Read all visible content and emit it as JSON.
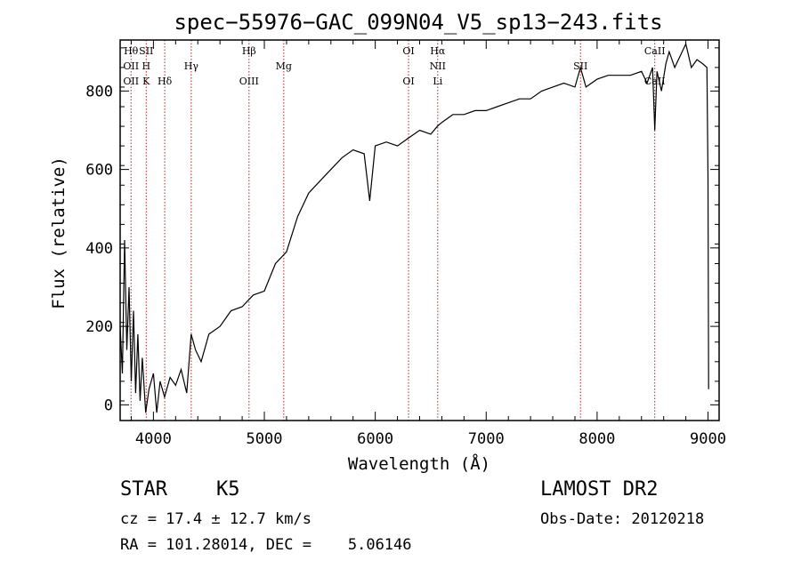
{
  "chart_data": {
    "type": "line",
    "title": "spec−55976−GAC_099N04_V5_sp13−243.fits",
    "xlabel": "Wavelength (Å)",
    "ylabel": "Flux (relative)",
    "xlim": [
      3700,
      9100
    ],
    "ylim": [
      -40,
      930
    ],
    "x_ticks": [
      4000,
      5000,
      6000,
      7000,
      8000,
      9000
    ],
    "y_ticks": [
      0,
      200,
      400,
      600,
      800
    ],
    "series": [
      {
        "color": "#000000",
        "x": [
          3700,
          3720,
          3740,
          3760,
          3780,
          3800,
          3820,
          3840,
          3860,
          3880,
          3900,
          3930,
          3960,
          4000,
          4030,
          4060,
          4100,
          4150,
          4200,
          4250,
          4300,
          4340,
          4380,
          4430,
          4500,
          4600,
          4700,
          4800,
          4900,
          5000,
          5100,
          5200,
          5300,
          5400,
          5500,
          5600,
          5700,
          5800,
          5900,
          5950,
          6000,
          6100,
          6200,
          6300,
          6400,
          6500,
          6560,
          6600,
          6700,
          6800,
          6900,
          7000,
          7100,
          7200,
          7300,
          7400,
          7500,
          7600,
          7700,
          7800,
          7850,
          7900,
          8000,
          8100,
          8200,
          8300,
          8400,
          8450,
          8500,
          8520,
          8540,
          8580,
          8620,
          8650,
          8700,
          8750,
          8800,
          8850,
          8900,
          8950,
          8990,
          9000,
          9005
        ],
        "y": [
          200,
          80,
          420,
          140,
          300,
          60,
          240,
          30,
          180,
          10,
          120,
          -20,
          40,
          80,
          -20,
          60,
          20,
          70,
          50,
          90,
          30,
          180,
          140,
          110,
          180,
          200,
          240,
          250,
          280,
          290,
          360,
          390,
          480,
          540,
          570,
          600,
          630,
          650,
          640,
          520,
          660,
          670,
          660,
          680,
          700,
          690,
          710,
          720,
          740,
          740,
          750,
          750,
          760,
          770,
          780,
          780,
          800,
          810,
          820,
          810,
          860,
          810,
          830,
          840,
          840,
          840,
          850,
          820,
          860,
          700,
          850,
          800,
          870,
          900,
          860,
          890,
          920,
          860,
          880,
          870,
          860,
          580,
          40
        ]
      }
    ],
    "lines": [
      {
        "label_top": "Hθ",
        "label_mid": "OII",
        "label_low": "OII",
        "x": 3798
      },
      {
        "label_top": "SII",
        "label_mid": "H",
        "label_low": "K",
        "x": 3935
      },
      {
        "label_top": "",
        "label_mid": "",
        "label_low": "Hδ",
        "x": 4102
      },
      {
        "label_top": "",
        "label_mid": "Hγ",
        "label_low": "",
        "x": 4341
      },
      {
        "label_top": "Hβ",
        "label_mid": "",
        "label_low": "OIII",
        "x": 4862
      },
      {
        "label_top": "",
        "label_mid": "Mg",
        "label_low": "",
        "x": 5175
      },
      {
        "label_top": "OI",
        "label_mid": "",
        "label_low": "OI",
        "x": 6300
      },
      {
        "label_top": "Hα",
        "label_mid": "NII",
        "label_low": "Li",
        "x": 6563
      },
      {
        "label_top": "",
        "label_mid": "SII",
        "label_low": "",
        "x": 7850
      },
      {
        "label_top": "CaII",
        "label_mid": "",
        "label_low": "CaII",
        "x": 8520
      }
    ],
    "grid": false
  },
  "info": {
    "class": "STAR",
    "subclass": "K5",
    "survey": "LAMOST DR2",
    "cz": "cz = 17.4 ± 12.7 km/s",
    "obs_date": "Obs-Date: 20120218",
    "coords": "RA = 101.28014, DEC =    5.06146"
  }
}
